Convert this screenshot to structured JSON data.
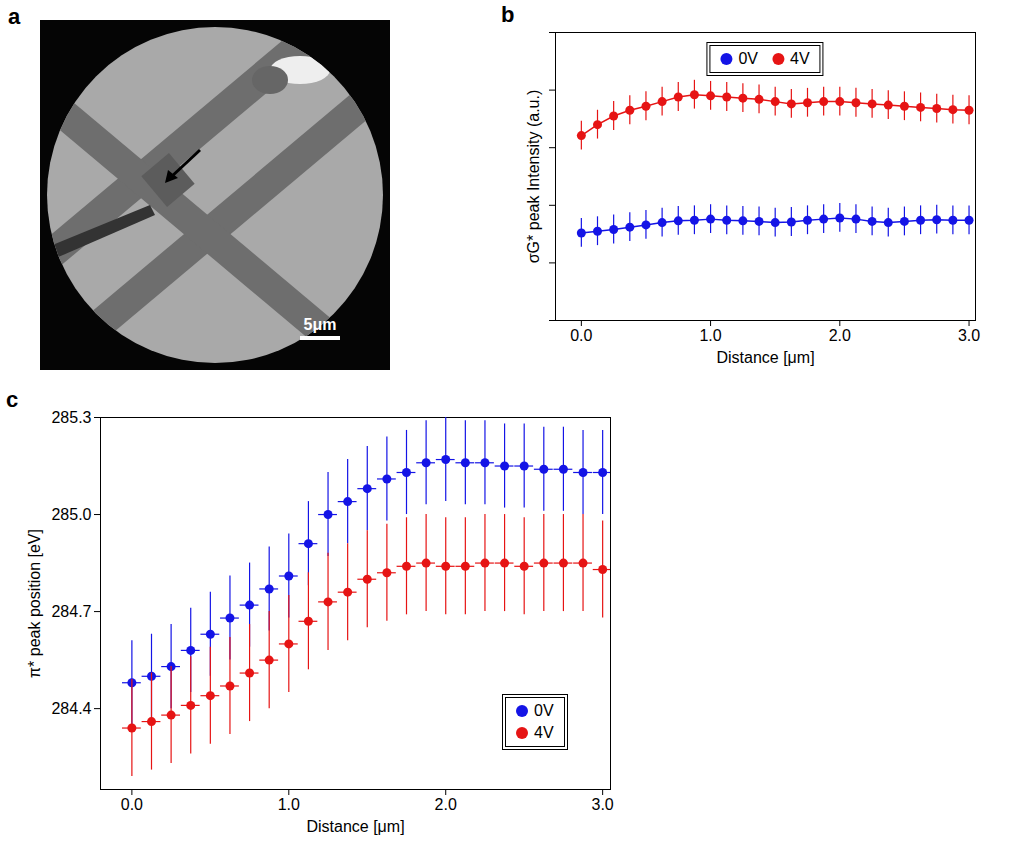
{
  "image_panel": {
    "panel_label": "a",
    "scale_bar": "5μm"
  },
  "chart_data": [
    {
      "panel_label": "b",
      "type": "line",
      "x_label": "Distance [μm]",
      "y_label": "σG* peak Intensity (a.u.)",
      "x": [
        0,
        0.125,
        0.25,
        0.375,
        0.5,
        0.625,
        0.75,
        0.875,
        1,
        1.125,
        1.25,
        1.375,
        1.5,
        1.625,
        1.75,
        1.875,
        2,
        2.125,
        2.25,
        2.375,
        2.5,
        2.625,
        2.75,
        2.875,
        3
      ],
      "series": [
        {
          "name": "0V",
          "color": "#1414e6",
          "values": [
            1.52,
            1.55,
            1.58,
            1.62,
            1.66,
            1.7,
            1.73,
            1.74,
            1.76,
            1.74,
            1.73,
            1.72,
            1.7,
            1.71,
            1.74,
            1.76,
            1.78,
            1.76,
            1.72,
            1.7,
            1.72,
            1.74,
            1.75,
            1.74,
            1.74
          ],
          "y_errors": [
            0.25,
            0.25,
            0.25,
            0.25,
            0.25,
            0.25,
            0.25,
            0.25,
            0.25,
            0.25,
            0.25,
            0.25,
            0.25,
            0.25,
            0.25,
            0.25,
            0.25,
            0.25,
            0.25,
            0.25,
            0.25,
            0.25,
            0.25,
            0.25,
            0.25
          ]
        },
        {
          "name": "4V",
          "color": "#e61414",
          "values": [
            3.21,
            3.4,
            3.55,
            3.65,
            3.72,
            3.8,
            3.88,
            3.92,
            3.9,
            3.88,
            3.86,
            3.84,
            3.8,
            3.76,
            3.78,
            3.8,
            3.8,
            3.78,
            3.76,
            3.74,
            3.72,
            3.7,
            3.68,
            3.66,
            3.65
          ],
          "y_errors": [
            0.25,
            0.25,
            0.25,
            0.25,
            0.25,
            0.25,
            0.25,
            0.25,
            0.25,
            0.25,
            0.25,
            0.25,
            0.25,
            0.25,
            0.25,
            0.25,
            0.25,
            0.25,
            0.25,
            0.25,
            0.25,
            0.25,
            0.25,
            0.25,
            0.25
          ]
        }
      ],
      "xlim": [
        -0.2,
        3.05
      ],
      "xticks": [
        {
          "value": 0,
          "label": "0.0"
        },
        {
          "value": 1,
          "label": "1.0"
        },
        {
          "value": 2,
          "label": "2.0"
        },
        {
          "value": 3,
          "label": "3.0"
        }
      ],
      "ylim": [
        0,
        5
      ],
      "yticks": [
        0,
        1,
        2,
        3,
        4,
        5
      ],
      "tick_labels": "x",
      "legend": "top",
      "marker": "circle",
      "line_style": "solid"
    },
    {
      "panel_label": "c",
      "type": "scatter",
      "x_label": "Distance [μm]",
      "y_label": "π* peak position [eV]",
      "x": [
        0,
        0.125,
        0.25,
        0.375,
        0.5,
        0.625,
        0.75,
        0.875,
        1,
        1.125,
        1.25,
        1.375,
        1.5,
        1.625,
        1.75,
        1.875,
        2,
        2.125,
        2.25,
        2.375,
        2.5,
        2.625,
        2.75,
        2.875,
        3
      ],
      "series": [
        {
          "name": "0V",
          "color": "#1414e6",
          "values": [
            284.48,
            284.5,
            284.53,
            284.58,
            284.63,
            284.68,
            284.72,
            284.77,
            284.81,
            284.91,
            285.0,
            285.04,
            285.08,
            285.11,
            285.13,
            285.16,
            285.17,
            285.16,
            285.16,
            285.15,
            285.15,
            285.14,
            285.14,
            285.13,
            285.13
          ],
          "y_errors": [
            0.13,
            0.13,
            0.13,
            0.13,
            0.13,
            0.13,
            0.13,
            0.13,
            0.13,
            0.13,
            0.13,
            0.13,
            0.13,
            0.13,
            0.13,
            0.13,
            0.13,
            0.13,
            0.13,
            0.13,
            0.13,
            0.13,
            0.13,
            0.13,
            0.13
          ],
          "x_errors": [
            0.06,
            0.06,
            0.06,
            0.06,
            0.06,
            0.06,
            0.06,
            0.06,
            0.06,
            0.06,
            0.06,
            0.06,
            0.06,
            0.06,
            0.06,
            0.06,
            0.06,
            0.06,
            0.06,
            0.06,
            0.06,
            0.06,
            0.06,
            0.06,
            0.06
          ]
        },
        {
          "name": "4V",
          "color": "#e61414",
          "values": [
            284.34,
            284.36,
            284.38,
            284.41,
            284.44,
            284.47,
            284.51,
            284.55,
            284.6,
            284.67,
            284.73,
            284.76,
            284.8,
            284.82,
            284.84,
            284.85,
            284.84,
            284.84,
            284.85,
            284.85,
            284.84,
            284.85,
            284.85,
            284.85,
            284.83
          ],
          "y_errors": [
            0.15,
            0.15,
            0.15,
            0.15,
            0.15,
            0.15,
            0.15,
            0.15,
            0.15,
            0.15,
            0.15,
            0.15,
            0.15,
            0.15,
            0.15,
            0.15,
            0.15,
            0.15,
            0.15,
            0.15,
            0.15,
            0.15,
            0.15,
            0.15,
            0.15
          ],
          "x_errors": [
            0.06,
            0.06,
            0.06,
            0.06,
            0.06,
            0.06,
            0.06,
            0.06,
            0.06,
            0.06,
            0.06,
            0.06,
            0.06,
            0.06,
            0.06,
            0.06,
            0.06,
            0.06,
            0.06,
            0.06,
            0.06,
            0.06,
            0.06,
            0.06,
            0.06
          ]
        }
      ],
      "xlim": [
        -0.2,
        3.05
      ],
      "xticks": [
        {
          "value": 0,
          "label": "0.0"
        },
        {
          "value": 1,
          "label": "1.0"
        },
        {
          "value": 2,
          "label": "2.0"
        },
        {
          "value": 3,
          "label": "3.0"
        }
      ],
      "ylim": [
        284.15,
        285.3
      ],
      "yticks": [
        284.4,
        284.7,
        {
          "value": 285,
          "label": "285.0"
        },
        285.3
      ],
      "legend": "bottom-right",
      "marker": "circle"
    }
  ]
}
